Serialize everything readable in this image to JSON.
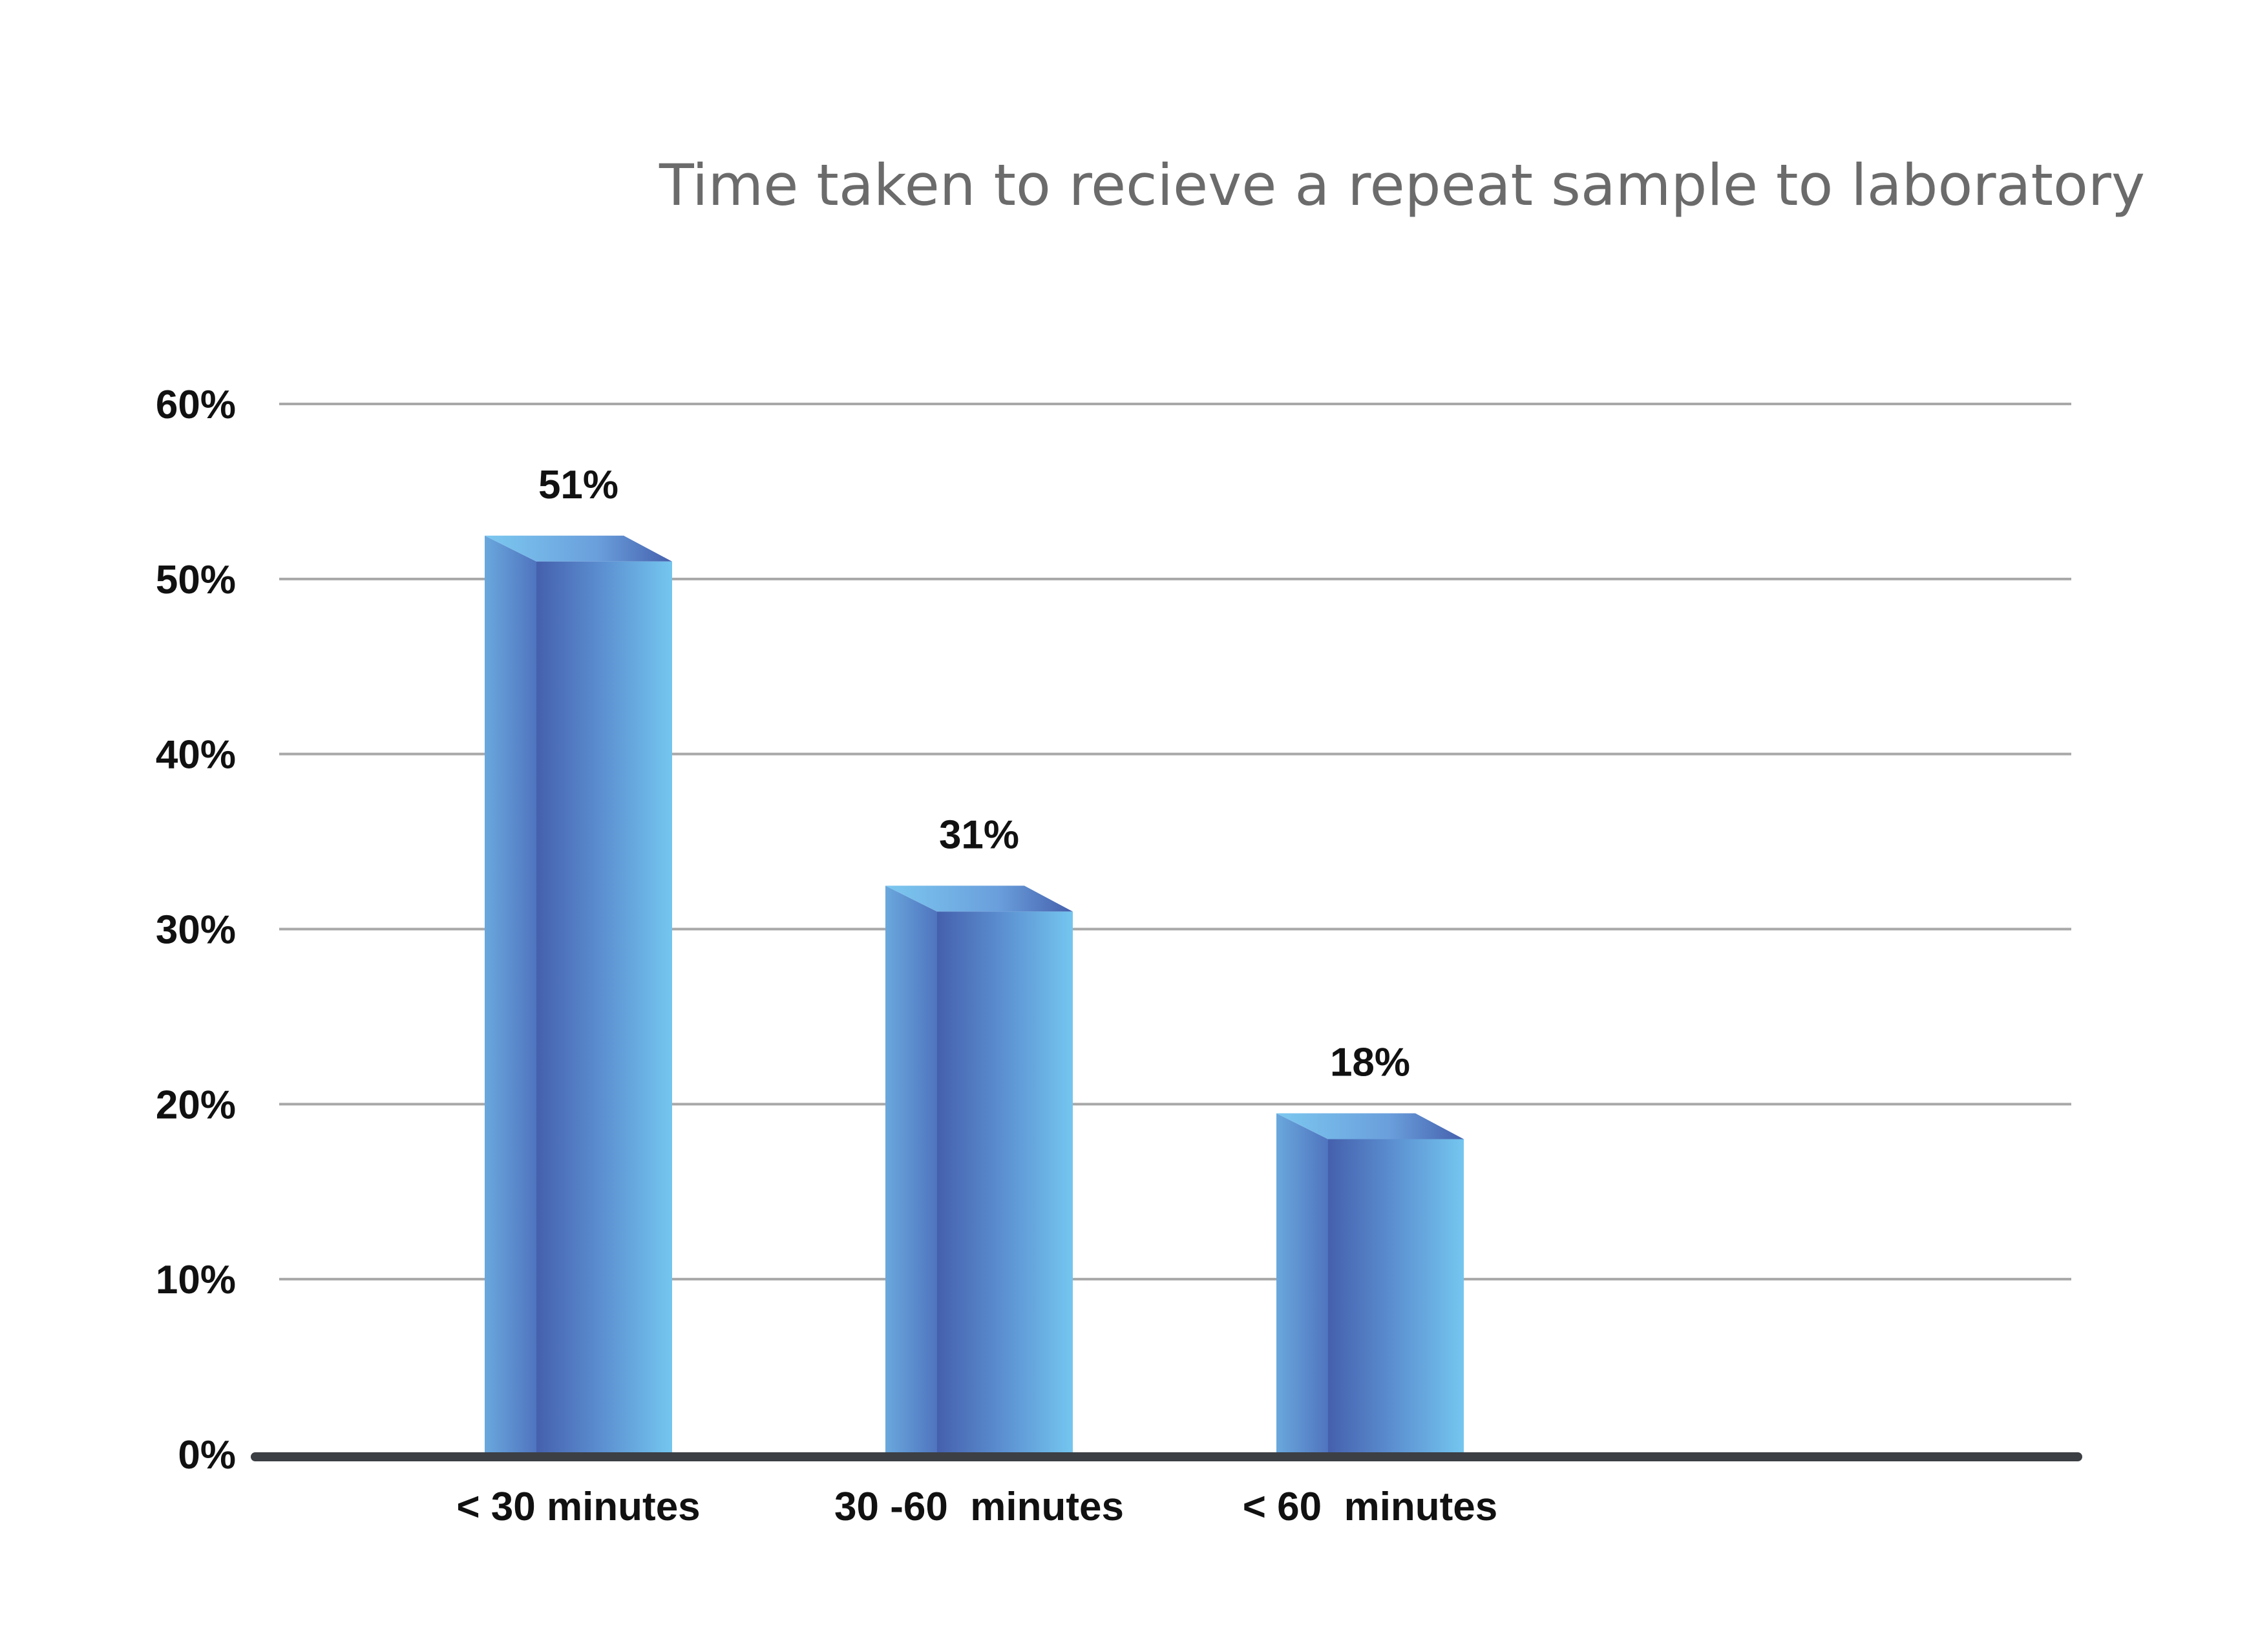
{
  "chart_data": {
    "type": "bar",
    "title": "Time taken to recieve a repeat sample to laboratory",
    "xlabel": "",
    "ylabel": "",
    "categories": [
      "< 30 minutes",
      "30 -60  minutes",
      "< 60  minutes"
    ],
    "values": [
      51,
      31,
      18
    ],
    "data_labels": [
      "51%",
      "31%",
      "18%"
    ],
    "ylim": [
      0,
      60
    ],
    "yticks": [
      0,
      10,
      20,
      30,
      40,
      50,
      60
    ],
    "ytick_labels": [
      "0%",
      "10%",
      "20%",
      "30%",
      "40%",
      "50%",
      "60%"
    ],
    "grid": true,
    "legend": "none",
    "colors": {
      "bar_dark": "#4560ad",
      "bar_light": "#74c6ef",
      "bar_mid": "#5a93d2",
      "gridline": "#a8a8a8",
      "axis": "#3c3f44",
      "title": "#6b6b6b"
    }
  }
}
